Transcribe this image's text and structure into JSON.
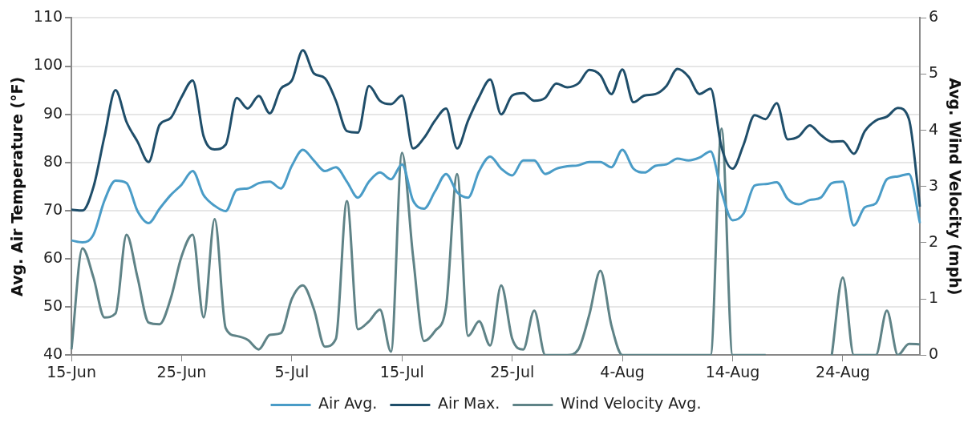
{
  "chart_data": {
    "type": "line",
    "xlabel": null,
    "ylabel": "Avg. Air Temperature (°F)",
    "y2label": "Avg. Wind Velocity (mph)",
    "categories": [
      "15-Jun",
      null,
      null,
      null,
      null,
      null,
      null,
      null,
      null,
      null,
      "25-Jun",
      null,
      null,
      null,
      null,
      null,
      null,
      null,
      null,
      null,
      "5-Jul",
      null,
      null,
      null,
      null,
      null,
      null,
      null,
      null,
      null,
      "15-Jul",
      null,
      null,
      null,
      null,
      null,
      null,
      null,
      null,
      null,
      "25-Jul",
      null,
      null,
      null,
      null,
      null,
      null,
      null,
      null,
      null,
      "4-Aug",
      null,
      null,
      null,
      null,
      null,
      null,
      null,
      null,
      null,
      "14-Aug",
      null,
      null,
      null,
      null,
      null,
      null,
      null,
      null,
      null,
      "24-Aug",
      null,
      null,
      null,
      null,
      null,
      null,
      null
    ],
    "series": [
      {
        "name": "Air Avg.",
        "color": "#4a9cc7",
        "values": [
          63.8,
          63.4,
          65,
          72.1,
          76.2,
          75.7,
          69.9,
          67.4,
          70.4,
          73.2,
          75.4,
          78.2,
          73.2,
          71,
          69.9,
          74.3,
          74.6,
          75.7,
          76,
          74.6,
          79.3,
          82.6,
          80.4,
          78.2,
          79,
          76,
          72.7,
          76,
          77.9,
          76.5,
          79.6,
          72.1,
          70.4,
          74,
          77.6,
          73.8,
          72.7,
          78.2,
          81.2,
          78.7,
          77.3,
          80.4,
          80.4,
          77.6,
          78.7,
          79.2,
          79.4,
          80.1,
          80.1,
          79,
          82.6,
          78.7,
          77.9,
          79.3,
          79.6,
          80.8,
          80.4,
          81,
          82.3,
          73.8,
          68,
          69.4,
          75.2,
          75.5,
          75.9,
          72.4,
          71.3,
          72.2,
          72.7,
          75.7,
          76,
          66.9,
          70.7,
          71.5,
          76.5,
          77.1,
          77.6,
          67.4
        ]
      },
      {
        "name": "Air Max.",
        "color": "#1f4e6a",
        "values": [
          70.2,
          70,
          74.9,
          85.4,
          95,
          88.4,
          84.3,
          80.1,
          87.8,
          89.2,
          93.6,
          97,
          85.4,
          82.7,
          83.7,
          93.4,
          91.2,
          93.8,
          90.2,
          95.3,
          97,
          103.3,
          98.5,
          97.5,
          92.8,
          86.5,
          86.2,
          95.9,
          92.8,
          92.1,
          93.9,
          82.9,
          85.1,
          88.7,
          91.2,
          82.9,
          88.7,
          93.6,
          97.2,
          90,
          93.9,
          94.4,
          92.8,
          93.4,
          96.4,
          95.6,
          96.4,
          99.2,
          98.1,
          94.2,
          99.3,
          92.5,
          93.9,
          94.2,
          95.9,
          99.4,
          97.8,
          94.2,
          95.3,
          83.1,
          78.7,
          83.7,
          89.8,
          89,
          92.3,
          84.8,
          85.4,
          87.7,
          85.7,
          84.3,
          84.4,
          81.8,
          86.5,
          88.7,
          89.5,
          91.3,
          89,
          70.8
        ]
      },
      {
        "name": "Wind Velocity Avg.",
        "color": "#5f8387",
        "axis": "y2",
        "values": [
          0.1,
          1.9,
          1.38,
          0.67,
          0.74,
          2.14,
          1.38,
          0.58,
          0.55,
          1,
          1.76,
          2.14,
          0.67,
          2.42,
          0.48,
          0.34,
          0.27,
          0.1,
          0.36,
          0.39,
          1,
          1.24,
          0.82,
          0.15,
          0.29,
          2.74,
          0.46,
          0.6,
          0.81,
          0.06,
          3.6,
          1.76,
          0.25,
          0.43,
          0.86,
          3.22,
          0.34,
          0.6,
          0.17,
          1.24,
          0.29,
          0.1,
          0.79,
          0,
          0,
          0,
          0.1,
          0.72,
          1.5,
          0.53,
          0,
          0,
          0,
          0,
          0,
          0,
          0,
          0,
          0,
          4.03,
          0,
          0,
          0,
          0,
          null,
          null,
          null,
          null,
          null,
          0,
          1.38,
          0,
          0,
          0,
          0.79,
          0,
          0.2,
          0.19
        ]
      }
    ],
    "ylim": [
      40,
      110
    ],
    "yticks": [
      40,
      50,
      60,
      70,
      80,
      90,
      100,
      110
    ],
    "y2lim": [
      0,
      6
    ],
    "y2ticks": [
      0,
      1,
      2,
      3,
      4,
      5,
      6
    ],
    "grid": "y",
    "legend": "bottom",
    "marker": "none",
    "line_style": "solid"
  }
}
